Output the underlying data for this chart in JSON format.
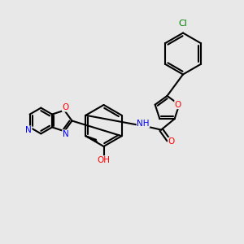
{
  "bg_color": "#e8e8e8",
  "bond_color": "#000000",
  "bond_width": 1.5,
  "atom_colors": {
    "N": "#0000ff",
    "O": "#ff0000",
    "Cl": "#008000",
    "C": "#000000",
    "H": "#000000"
  },
  "font_size": 8
}
